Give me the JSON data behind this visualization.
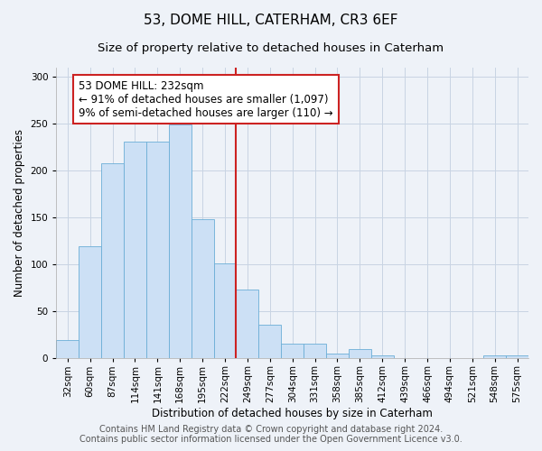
{
  "title": "53, DOME HILL, CATERHAM, CR3 6EF",
  "subtitle": "Size of property relative to detached houses in Caterham",
  "xlabel": "Distribution of detached houses by size in Caterham",
  "ylabel": "Number of detached properties",
  "bar_color": "#cce0f5",
  "bar_edge_color": "#6baed6",
  "grid_color": "#c8d4e3",
  "background_color": "#eef2f8",
  "vline_color": "#cc2222",
  "vline_bin_index": 7,
  "categories": [
    "32sqm",
    "60sqm",
    "87sqm",
    "114sqm",
    "141sqm",
    "168sqm",
    "195sqm",
    "222sqm",
    "249sqm",
    "277sqm",
    "304sqm",
    "331sqm",
    "358sqm",
    "385sqm",
    "412sqm",
    "439sqm",
    "466sqm",
    "494sqm",
    "521sqm",
    "548sqm",
    "575sqm"
  ],
  "values": [
    20,
    120,
    208,
    231,
    231,
    249,
    148,
    101,
    73,
    36,
    16,
    16,
    5,
    10,
    3,
    0,
    0,
    0,
    0,
    3,
    3
  ],
  "annotation_text": "53 DOME HILL: 232sqm\n← 91% of detached houses are smaller (1,097)\n9% of semi-detached houses are larger (110) →",
  "annotation_box_facecolor": "#ffffff",
  "annotation_box_edgecolor": "#cc2222",
  "footer_line1": "Contains HM Land Registry data © Crown copyright and database right 2024.",
  "footer_line2": "Contains public sector information licensed under the Open Government Licence v3.0.",
  "ylim": [
    0,
    310
  ],
  "yticks": [
    0,
    50,
    100,
    150,
    200,
    250,
    300
  ],
  "title_fontsize": 11,
  "subtitle_fontsize": 9.5,
  "axis_label_fontsize": 8.5,
  "tick_fontsize": 7.5,
  "annotation_fontsize": 8.5,
  "footer_fontsize": 7
}
